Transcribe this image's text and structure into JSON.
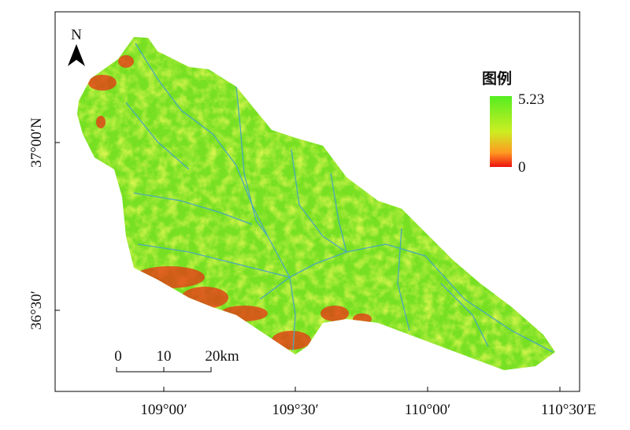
{
  "map": {
    "north_arrow": "N",
    "legend": {
      "title": "图例",
      "max_label": "5.23",
      "min_label": "0"
    },
    "y_axis_labels": [
      "37°00′N",
      "36°30′"
    ],
    "x_axis_labels": [
      "109°00′",
      "109°30′",
      "110°00′",
      "110°30′E"
    ],
    "scale_bar": [
      "0",
      "10",
      "20km"
    ]
  }
}
